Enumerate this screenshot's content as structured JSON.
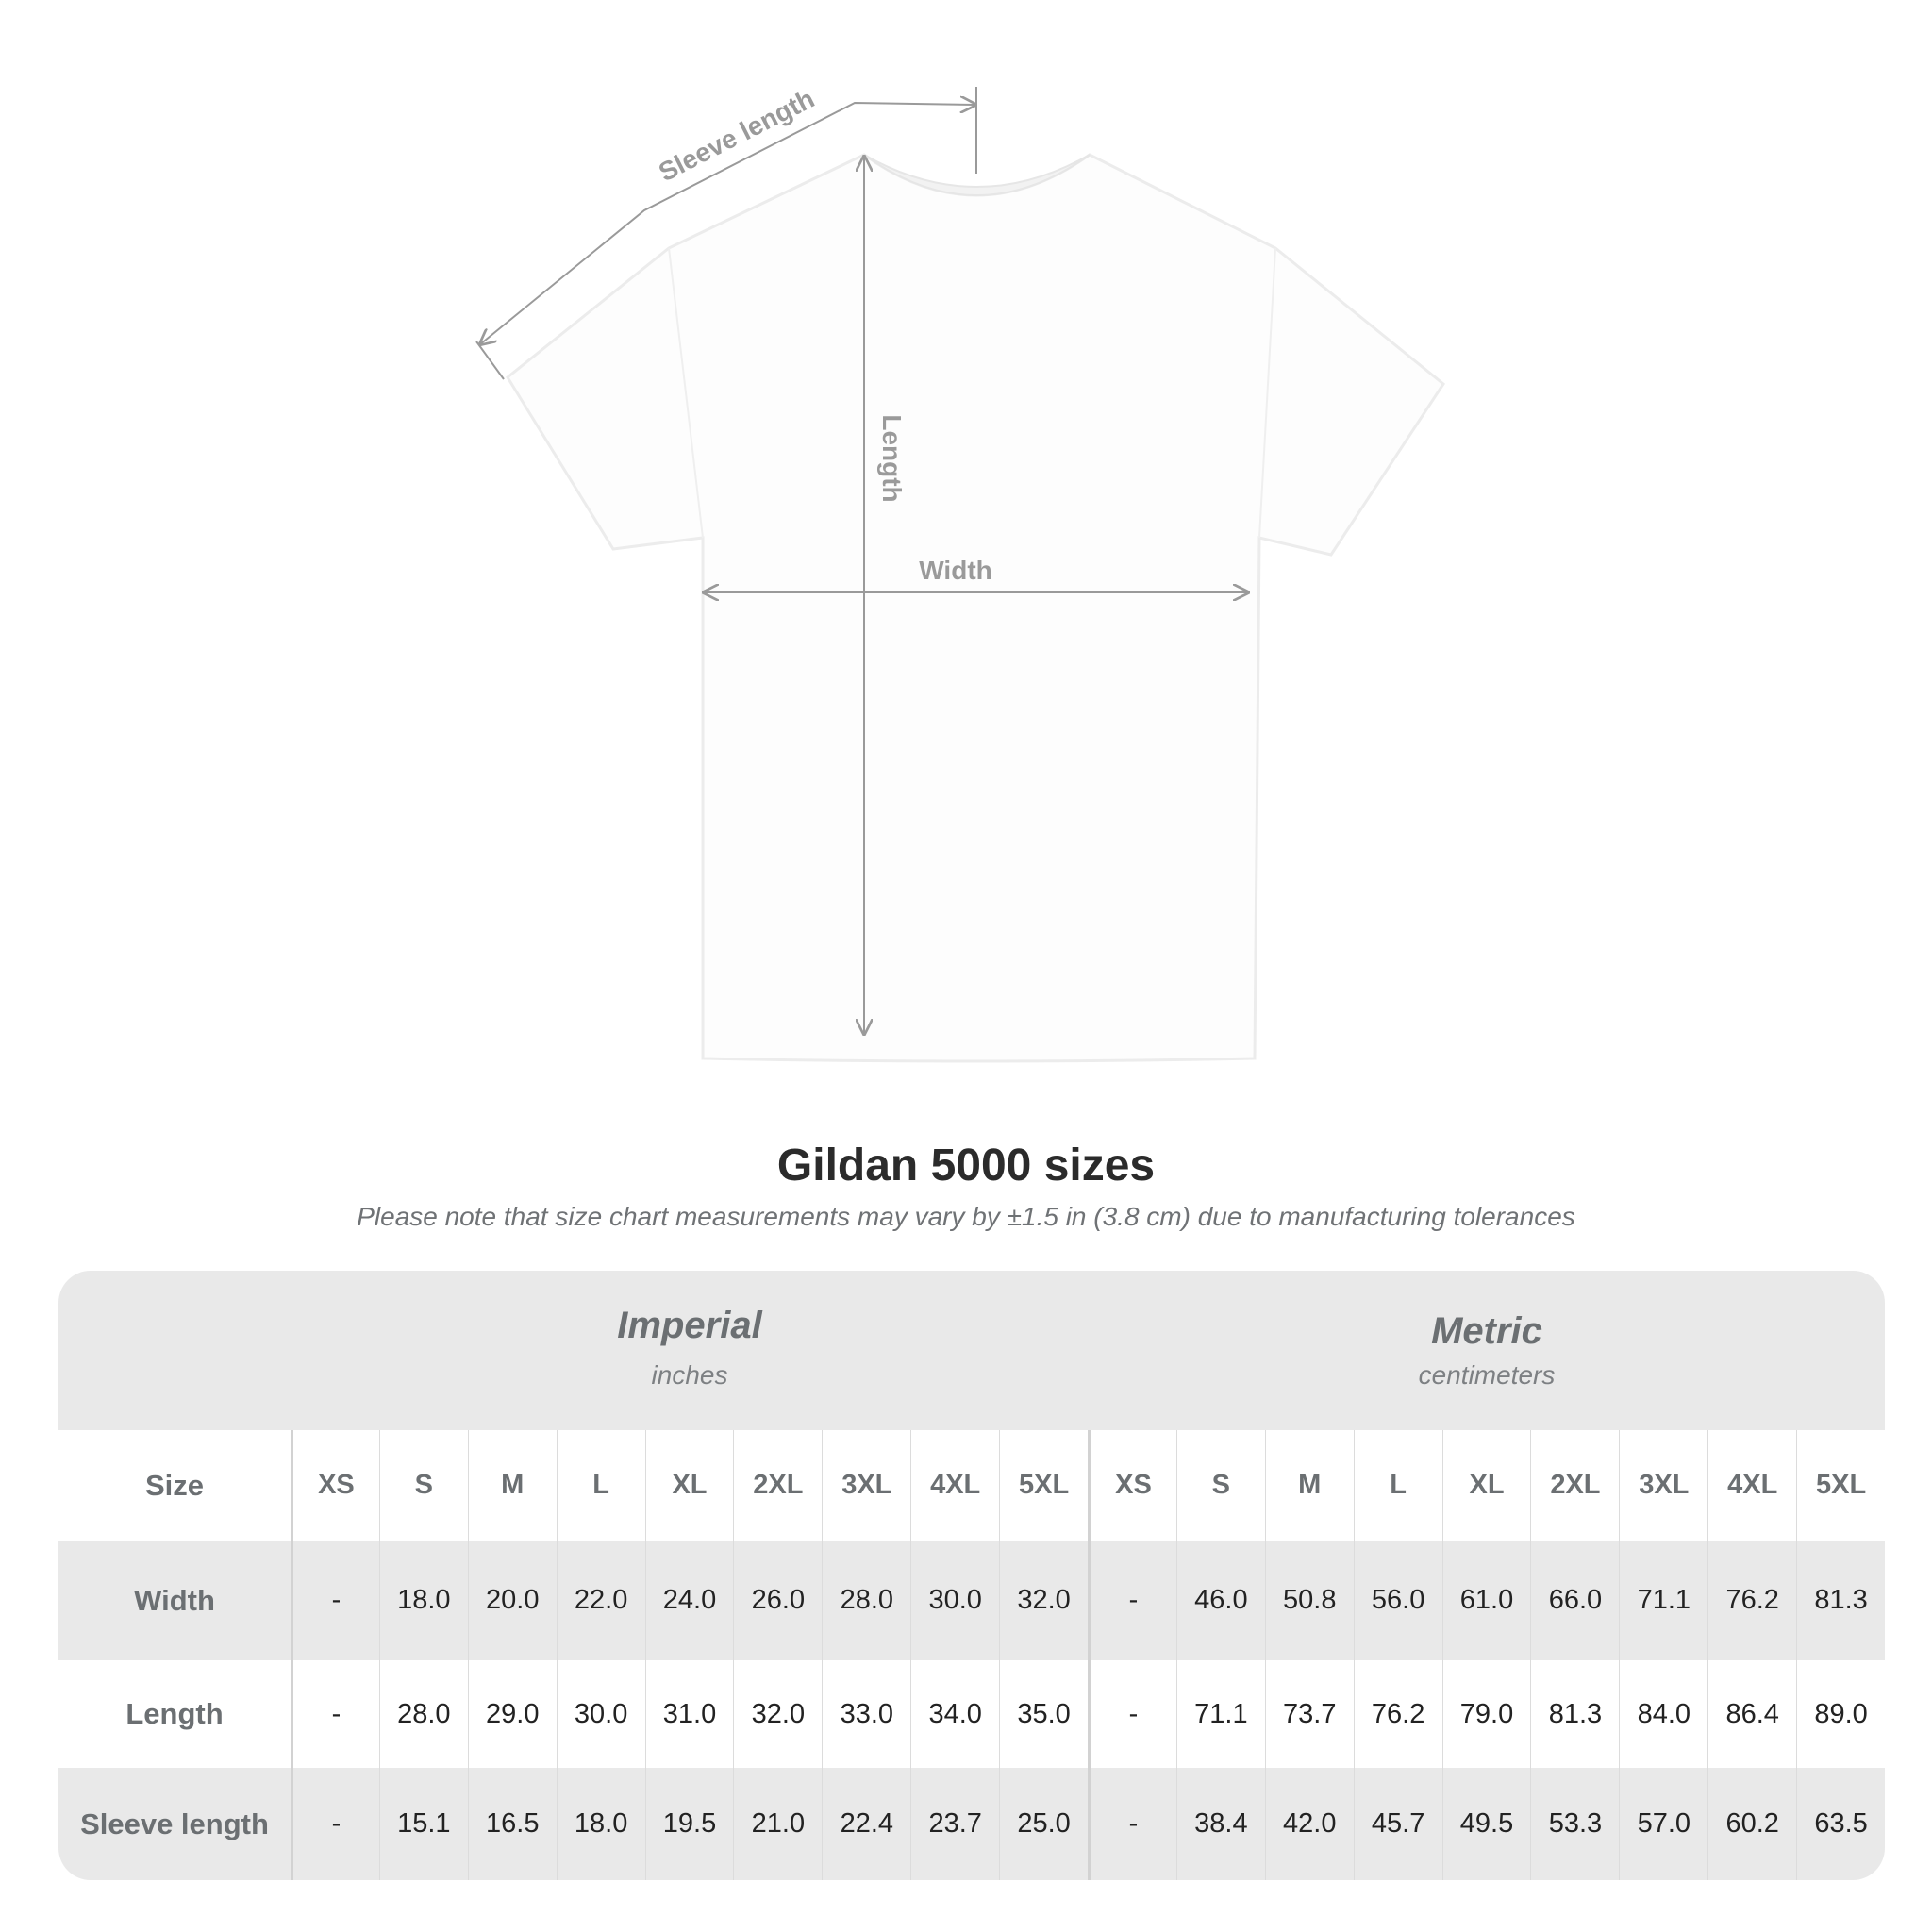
{
  "diagram": {
    "labels": {
      "sleeve": "Sleeve length",
      "length": "Length",
      "width": "Width"
    }
  },
  "title": "Gildan 5000 sizes",
  "note": "Please note that size chart measurements may vary by ±1.5 in (3.8 cm) due to manufacturing tolerances",
  "table": {
    "imperial": {
      "name": "Imperial",
      "unit": "inches"
    },
    "metric": {
      "name": "Metric",
      "unit": "centimeters"
    },
    "size_label": "Size",
    "sizes": [
      "XS",
      "S",
      "M",
      "L",
      "XL",
      "2XL",
      "3XL",
      "4XL",
      "5XL"
    ],
    "rows": [
      {
        "label": "Width",
        "imperial": [
          "-",
          "18.0",
          "20.0",
          "22.0",
          "24.0",
          "26.0",
          "28.0",
          "30.0",
          "32.0"
        ],
        "metric": [
          "-",
          "46.0",
          "50.8",
          "56.0",
          "61.0",
          "66.0",
          "71.1",
          "76.2",
          "81.3"
        ]
      },
      {
        "label": "Length",
        "imperial": [
          "-",
          "28.0",
          "29.0",
          "30.0",
          "31.0",
          "32.0",
          "33.0",
          "34.0",
          "35.0"
        ],
        "metric": [
          "-",
          "71.1",
          "73.7",
          "76.2",
          "79.0",
          "81.3",
          "84.0",
          "86.4",
          "89.0"
        ]
      },
      {
        "label": "Sleeve length",
        "imperial": [
          "-",
          "15.1",
          "16.5",
          "18.0",
          "19.5",
          "21.0",
          "22.4",
          "23.7",
          "25.0"
        ],
        "metric": [
          "-",
          "38.4",
          "42.0",
          "45.7",
          "49.5",
          "53.3",
          "57.0",
          "60.2",
          "63.5"
        ]
      }
    ]
  },
  "colors": {
    "header_text": "#6b6f72",
    "table_bg": "#e9e9e9",
    "measure_line": "#9a9a9a"
  }
}
